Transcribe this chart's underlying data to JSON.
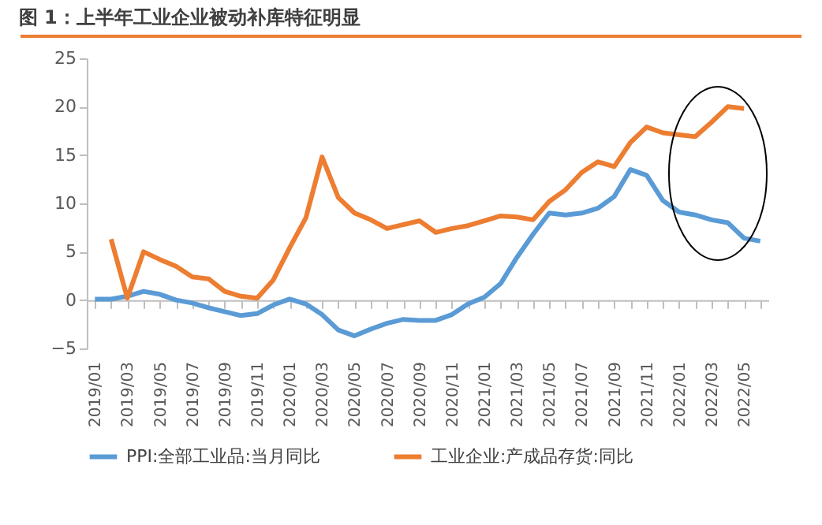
{
  "chart_data": {
    "type": "line",
    "title": "图 1：上半年工业企业被动补库特征明显",
    "categories": [
      "2019/01",
      null,
      "2019/03",
      null,
      "2019/05",
      null,
      "2019/07",
      null,
      "2019/09",
      null,
      "2019/11",
      null,
      "2020/01",
      null,
      "2020/03",
      null,
      "2020/05",
      null,
      "2020/07",
      null,
      "2020/09",
      null,
      "2020/11",
      null,
      "2021/01",
      null,
      "2021/03",
      null,
      "2021/05",
      null,
      "2021/07",
      null,
      "2021/09",
      null,
      "2021/11",
      null,
      "2022/01",
      null,
      "2022/03",
      null,
      "2022/05",
      null
    ],
    "series": [
      {
        "name": "PPI:全部工业品:当月同比",
        "color": "#5b9bd5",
        "values": [
          0.1,
          0.1,
          0.4,
          0.9,
          0.6,
          0,
          -0.3,
          -0.8,
          -1.2,
          -1.6,
          -1.4,
          -0.5,
          0.1,
          -0.4,
          -1.5,
          -3.1,
          -3.7,
          -3.0,
          -2.4,
          -2.0,
          -2.1,
          -2.1,
          -1.5,
          -0.4,
          0.3,
          1.7,
          4.4,
          6.8,
          9.0,
          8.8,
          9.0,
          9.5,
          10.7,
          13.5,
          12.9,
          10.3,
          9.1,
          8.8,
          8.3,
          8.0,
          6.4,
          6.1
        ]
      },
      {
        "name": "工业企业:产成品存货:同比",
        "color": "#ed7d31",
        "values": [
          null,
          6.3,
          0.2,
          5.0,
          4.2,
          3.5,
          2.4,
          2.2,
          0.9,
          0.4,
          0.2,
          2.1,
          5.4,
          8.5,
          14.8,
          10.6,
          9.0,
          8.3,
          7.4,
          7.8,
          8.2,
          7.0,
          7.4,
          7.7,
          8.2,
          8.7,
          8.6,
          8.3,
          10.2,
          11.4,
          13.2,
          14.3,
          13.8,
          16.3,
          17.9,
          17.3,
          17.1,
          16.9,
          18.4,
          20.0,
          19.8,
          null
        ]
      }
    ],
    "ylim": [
      -5,
      25
    ],
    "yticks": [
      -5,
      0,
      5,
      10,
      15,
      20,
      25
    ],
    "legend": "bottom"
  }
}
